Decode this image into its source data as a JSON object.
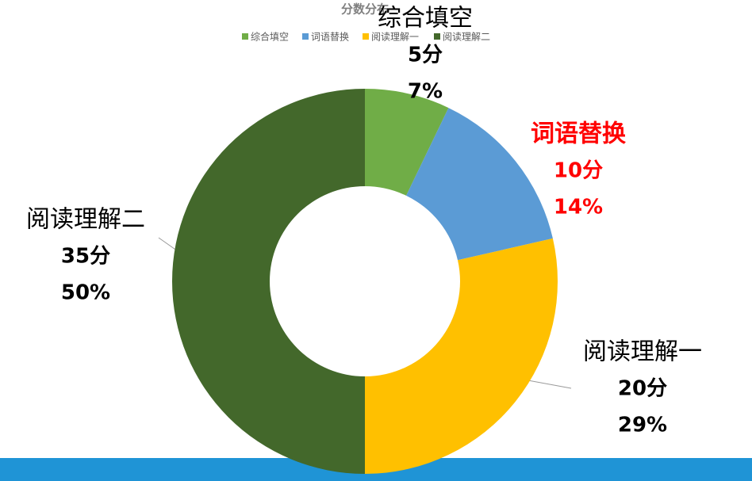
{
  "chart_data": {
    "type": "donut",
    "title": "分数分布",
    "categories": [
      "综合填空",
      "词语替换",
      "阅读理解一",
      "阅读理解二"
    ],
    "values": [
      5,
      10,
      20,
      35
    ],
    "value_labels": [
      "5分",
      "10分",
      "20分",
      "35分"
    ],
    "percent_labels": [
      "7%",
      "14%",
      "29%",
      "50%"
    ],
    "colors": [
      "#70ad47",
      "#5b9bd5",
      "#ffc000",
      "#43682b"
    ],
    "label_colors": [
      "#000000",
      "#ff0000",
      "#000000",
      "#000000"
    ],
    "legend": "top"
  }
}
